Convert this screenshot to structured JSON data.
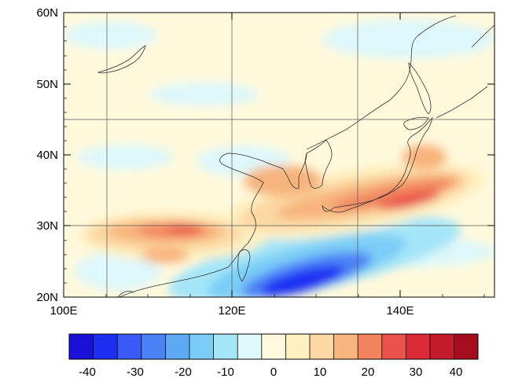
{
  "map": {
    "lon_range": [
      100,
      150
    ],
    "lat_range": [
      20,
      60
    ],
    "x_ticks": [
      {
        "value": 100,
        "label": "100E"
      },
      {
        "value": 120,
        "label": "120E"
      },
      {
        "value": 140,
        "label": "140E"
      }
    ],
    "y_ticks": [
      {
        "value": 20,
        "label": "20N"
      },
      {
        "value": 30,
        "label": "30N"
      },
      {
        "value": 40,
        "label": "40N"
      },
      {
        "value": 50,
        "label": "50N"
      },
      {
        "value": 60,
        "label": "60N"
      }
    ],
    "gridlines_lon": [
      105,
      120,
      135
    ],
    "gridlines_lat": [
      30,
      45
    ],
    "background_color": "#fff9dc"
  },
  "colorbar": {
    "colors": [
      "#1a11d6",
      "#1f2ff2",
      "#3a59f7",
      "#4b82f5",
      "#5ea9f6",
      "#7bcdf7",
      "#a4e6f8",
      "#def8fb",
      "#fffadf",
      "#fff0c2",
      "#fcd8a2",
      "#f8b47d",
      "#f2845d",
      "#e9514a",
      "#dc2a36",
      "#c31b2a",
      "#a50d1e"
    ],
    "ticks": [
      "-40",
      "-30",
      "-20",
      "-10",
      "0",
      "10",
      "20",
      "30",
      "40"
    ]
  }
}
